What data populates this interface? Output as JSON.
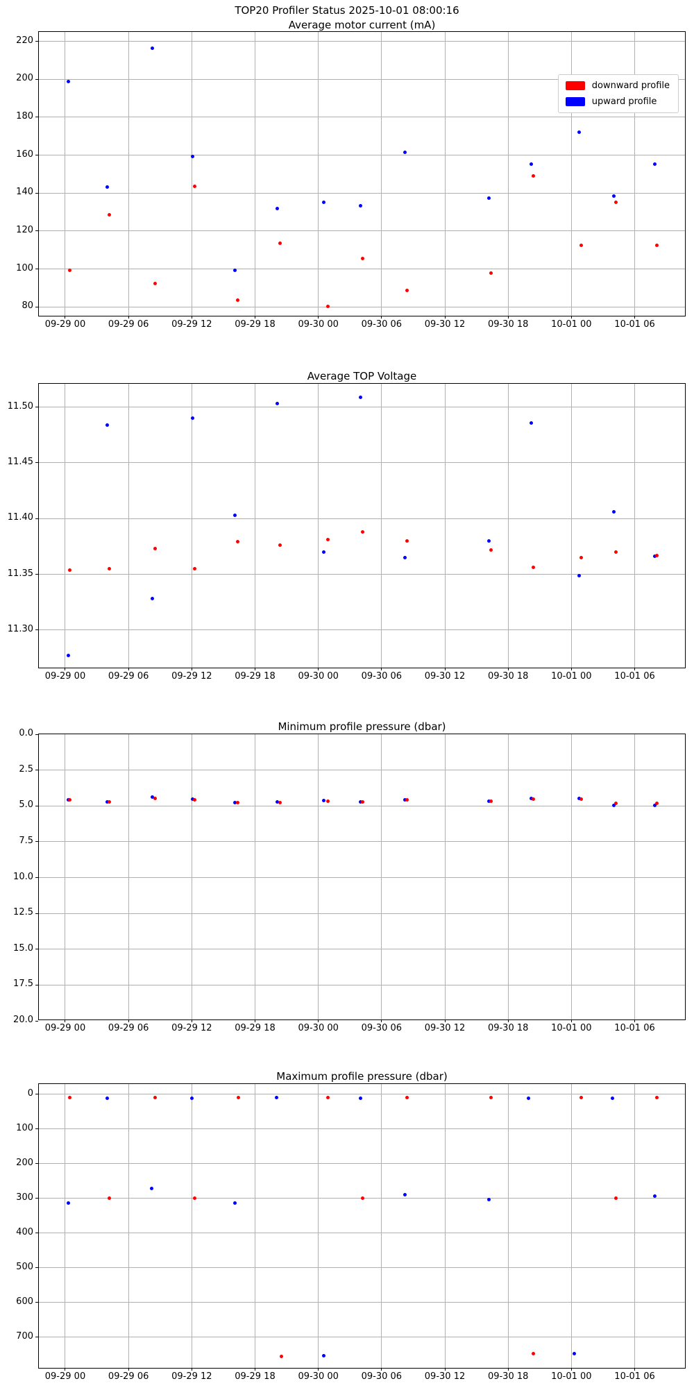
{
  "figure_title": "TOP20 Profiler Status 2025-10-01 08:00:16",
  "colors": {
    "downward": "#ff0000",
    "upward": "#0000ff",
    "grid": "#b0b0b0",
    "axis": "#000000"
  },
  "legend": {
    "items": [
      {
        "label": "downward profile",
        "color": "#ff0000"
      },
      {
        "label": "upward profile",
        "color": "#0000ff"
      }
    ]
  },
  "x_axis": {
    "range": [
      -2.5,
      58.9
    ],
    "tick_hours": [
      0,
      6,
      12,
      18,
      24,
      30,
      36,
      42,
      48,
      54
    ],
    "tick_labels": [
      "09-29 00",
      "09-29 06",
      "09-29 12",
      "09-29 18",
      "09-30 00",
      "09-30 06",
      "09-30 12",
      "09-30 18",
      "10-01 00",
      "10-01 06"
    ]
  },
  "chart_data": [
    {
      "type": "scatter",
      "title": "Average motor current (mA)",
      "ylim": [
        74.6,
        225.0
      ],
      "inverted": false,
      "yticks": [
        80,
        100,
        120,
        140,
        160,
        180,
        200,
        220
      ],
      "ytick_labels": [
        "80",
        "100",
        "120",
        "140",
        "160",
        "180",
        "200",
        "220"
      ],
      "series": [
        {
          "name": "downward profile",
          "color": "#ff0000",
          "points": [
            [
              0.4,
              99.3
            ],
            [
              4.2,
              128.5
            ],
            [
              8.5,
              92.3
            ],
            [
              12.3,
              143.5
            ],
            [
              16.35,
              83.5
            ],
            [
              20.4,
              113.5
            ],
            [
              24.9,
              80.4
            ],
            [
              28.2,
              105.5
            ],
            [
              32.4,
              88.8
            ],
            [
              40.4,
              97.8
            ],
            [
              44.4,
              149.0
            ],
            [
              48.9,
              112.5
            ],
            [
              52.2,
              135.0
            ],
            [
              56.1,
              112.3
            ]
          ]
        },
        {
          "name": "upward profile",
          "color": "#0000ff",
          "points": [
            [
              0.3,
              198.8
            ],
            [
              4.0,
              143.3
            ],
            [
              8.25,
              216.5
            ],
            [
              12.1,
              159.3
            ],
            [
              16.1,
              99.3
            ],
            [
              20.1,
              131.8
            ],
            [
              24.5,
              135.3
            ],
            [
              28.0,
              133.4
            ],
            [
              32.2,
              161.5
            ],
            [
              40.2,
              137.5
            ],
            [
              44.2,
              155.3
            ],
            [
              48.75,
              172.3
            ],
            [
              52.0,
              138.5
            ],
            [
              55.9,
              155.3
            ]
          ]
        }
      ]
    },
    {
      "type": "scatter",
      "title": "Average TOP Voltage",
      "ylim": [
        11.265,
        11.521
      ],
      "inverted": false,
      "yticks": [
        11.3,
        11.35,
        11.4,
        11.45,
        11.5
      ],
      "ytick_labels": [
        "11.30",
        "11.35",
        "11.40",
        "11.45",
        "11.50"
      ],
      "series": [
        {
          "name": "downward profile",
          "color": "#ff0000",
          "points": [
            [
              0.4,
              11.354
            ],
            [
              4.2,
              11.355
            ],
            [
              8.5,
              11.373
            ],
            [
              12.3,
              11.355
            ],
            [
              16.35,
              11.379
            ],
            [
              20.4,
              11.376
            ],
            [
              24.9,
              11.381
            ],
            [
              28.2,
              11.388
            ],
            [
              32.4,
              11.38
            ],
            [
              40.4,
              11.372
            ],
            [
              44.4,
              11.356
            ],
            [
              48.9,
              11.365
            ],
            [
              52.2,
              11.37
            ],
            [
              56.1,
              11.367
            ]
          ]
        },
        {
          "name": "upward profile",
          "color": "#0000ff",
          "points": [
            [
              0.3,
              11.277
            ],
            [
              4.0,
              11.484
            ],
            [
              8.25,
              11.328
            ],
            [
              12.1,
              11.49
            ],
            [
              16.1,
              11.403
            ],
            [
              20.1,
              11.503
            ],
            [
              24.5,
              11.37
            ],
            [
              28.0,
              11.509
            ],
            [
              32.2,
              11.365
            ],
            [
              40.2,
              11.38
            ],
            [
              44.2,
              11.486
            ],
            [
              48.75,
              11.349
            ],
            [
              52.0,
              11.406
            ],
            [
              55.9,
              11.366
            ]
          ]
        }
      ]
    },
    {
      "type": "scatter",
      "title": "Minimum profile pressure (dbar)",
      "ylim": [
        0,
        20
      ],
      "inverted": true,
      "yticks": [
        0,
        2.5,
        5,
        7.5,
        10,
        12.5,
        15,
        17.5,
        20
      ],
      "ytick_labels": [
        "0.0",
        "2.5",
        "5.0",
        "7.5",
        "10.0",
        "12.5",
        "15.0",
        "17.5",
        "20.0"
      ],
      "series": [
        {
          "name": "downward profile",
          "color": "#ff0000",
          "points": [
            [
              0.4,
              4.6
            ],
            [
              4.2,
              4.72
            ],
            [
              8.5,
              4.47
            ],
            [
              12.3,
              4.57
            ],
            [
              16.35,
              4.77
            ],
            [
              20.4,
              4.75
            ],
            [
              24.9,
              4.68
            ],
            [
              28.2,
              4.72
            ],
            [
              32.4,
              4.6
            ],
            [
              40.4,
              4.68
            ],
            [
              44.4,
              4.53
            ],
            [
              48.9,
              4.52
            ],
            [
              52.2,
              4.82
            ],
            [
              56.1,
              4.82
            ]
          ]
        },
        {
          "name": "upward profile",
          "color": "#0000ff",
          "points": [
            [
              0.3,
              4.57
            ],
            [
              4.0,
              4.7
            ],
            [
              8.25,
              4.4
            ],
            [
              12.1,
              4.55
            ],
            [
              16.1,
              4.75
            ],
            [
              20.1,
              4.73
            ],
            [
              24.5,
              4.63
            ],
            [
              28.0,
              4.7
            ],
            [
              32.2,
              4.58
            ],
            [
              40.2,
              4.65
            ],
            [
              44.2,
              4.5
            ],
            [
              48.75,
              4.5
            ],
            [
              52.0,
              4.97
            ],
            [
              55.9,
              4.97
            ]
          ]
        }
      ]
    },
    {
      "type": "scatter",
      "title": "Maximum profile pressure (dbar)",
      "ylim": [
        -29,
        793
      ],
      "inverted": true,
      "yticks": [
        0,
        100,
        200,
        300,
        400,
        500,
        600,
        700
      ],
      "ytick_labels": [
        "0",
        "100",
        "200",
        "300",
        "400",
        "500",
        "600",
        "700"
      ],
      "series": [
        {
          "name": "downward profile",
          "color": "#ff0000",
          "points": [
            [
              0.4,
              9
            ],
            [
              4.2,
              300
            ],
            [
              8.5,
              9
            ],
            [
              12.3,
              300
            ],
            [
              16.4,
              9
            ],
            [
              20.5,
              756
            ],
            [
              24.9,
              9
            ],
            [
              28.2,
              300
            ],
            [
              32.4,
              9
            ],
            [
              40.4,
              9
            ],
            [
              44.4,
              747
            ],
            [
              48.9,
              9
            ],
            [
              52.2,
              300
            ],
            [
              56.1,
              9
            ]
          ]
        },
        {
          "name": "upward profile",
          "color": "#0000ff",
          "points": [
            [
              0.3,
              314
            ],
            [
              4.0,
              11
            ],
            [
              8.2,
              272
            ],
            [
              12.0,
              12
            ],
            [
              16.1,
              314
            ],
            [
              20.05,
              9
            ],
            [
              24.5,
              753
            ],
            [
              28.0,
              11
            ],
            [
              32.2,
              289
            ],
            [
              40.2,
              304
            ],
            [
              43.95,
              11
            ],
            [
              48.3,
              747
            ],
            [
              51.9,
              11
            ],
            [
              55.9,
              294
            ]
          ]
        }
      ]
    }
  ]
}
